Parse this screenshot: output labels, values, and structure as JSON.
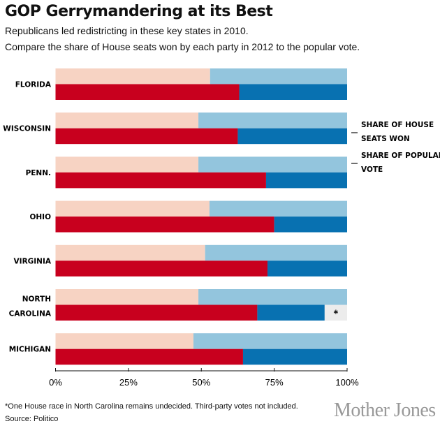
{
  "title": "GOP Gerrymandering at its Best",
  "subtitle1": "Republicans led redistricting in these key states in 2010.",
  "subtitle2": "Compare the share of House seats won by each party in 2012 to the popular vote.",
  "footnote": "*One House race in North Carolina remains undecided. Third-party votes not included.",
  "source": "Source: Politico",
  "logo": "Mother Jones",
  "chart_data": {
    "type": "bar",
    "orientation": "horizontal-stacked",
    "categories": [
      "FLORIDA",
      "WISCONSIN",
      "PENN.",
      "OHIO",
      "VIRGINIA",
      "NORTH CAROLINA",
      "MICHIGAN"
    ],
    "popular_vote_gop": [
      53,
      49,
      49,
      52.8,
      51.3,
      49,
      47.3
    ],
    "house_seats_gop": [
      63,
      62.5,
      72.2,
      75,
      72.7,
      69.2,
      64.3
    ],
    "house_seats_dem": [
      37,
      37.5,
      27.8,
      25,
      27.3,
      23.1,
      35.7
    ],
    "house_seats_undecided": [
      0,
      0,
      0,
      0,
      0,
      7.7,
      0
    ],
    "undecided_mark": "*",
    "legend": [
      "SHARE OF HOUSE SEATS WON",
      "SHARE OF POPULAR VOTE"
    ],
    "legend_placement": "right",
    "xlim": [
      0,
      100
    ],
    "xticks": [
      "0%",
      "25%",
      "50%",
      "75%",
      "100%"
    ],
    "colors": {
      "gop_seats": "#c8001e",
      "dem_seats": "#0871b1",
      "gop_vote": "#f7d3c3",
      "dem_vote": "#93c5dd",
      "undecided": "#ececec"
    }
  }
}
